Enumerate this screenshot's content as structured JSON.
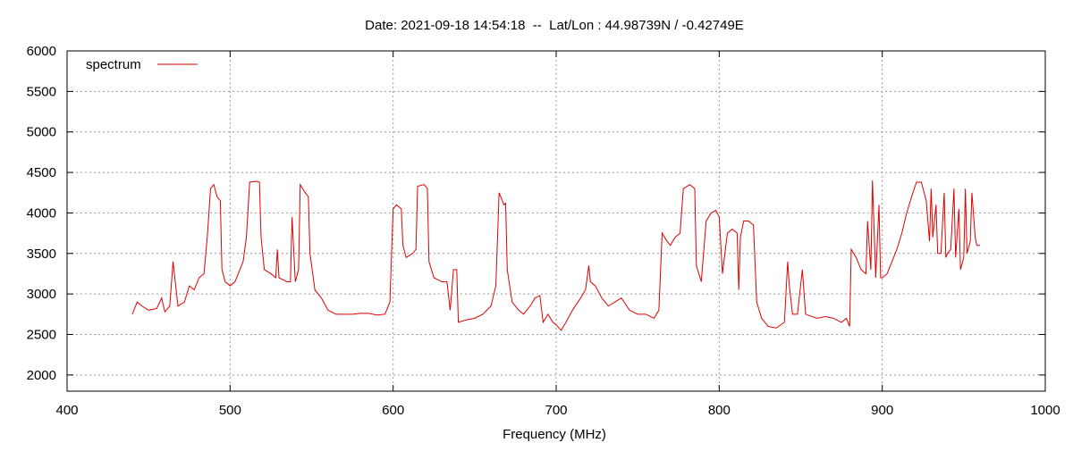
{
  "chart_data": {
    "type": "line",
    "title": "Date: 2021-09-18 14:54:18  --  Lat/Lon : 44.98739N / -0.42749E",
    "x_label": "Frequency (MHz)",
    "xlim": [
      400,
      1000
    ],
    "xticks": [
      400,
      500,
      600,
      700,
      800,
      900,
      1000
    ],
    "ylim": [
      1800,
      6000
    ],
    "yticks": [
      2000,
      2500,
      3000,
      3500,
      4000,
      4500,
      5000,
      5500,
      6000
    ],
    "grid": true,
    "legend": "top-left",
    "series": [
      {
        "name": "spectrum",
        "color": "#e00000",
        "x": [
          440,
          443,
          446,
          450,
          455,
          458,
          460,
          463,
          465,
          468,
          472,
          475,
          478,
          481,
          484,
          486,
          488,
          490,
          492,
          494,
          495,
          497,
          500,
          503,
          506,
          508,
          510,
          512,
          516,
          518,
          519,
          521,
          525,
          528,
          529,
          530,
          535,
          537,
          538,
          540,
          542,
          543,
          546,
          548,
          549,
          552,
          556,
          560,
          565,
          570,
          575,
          580,
          585,
          590,
          595,
          598,
          600,
          602,
          605,
          606,
          608,
          612,
          614,
          615,
          619,
          621,
          622,
          625,
          630,
          633,
          635,
          637,
          639,
          640,
          645,
          650,
          655,
          660,
          663,
          665,
          668,
          669,
          670,
          673,
          677,
          680,
          684,
          687,
          690,
          692,
          695,
          698,
          700,
          703,
          706,
          710,
          715,
          718,
          720,
          721,
          724,
          728,
          732,
          736,
          740,
          745,
          750,
          755,
          760,
          763,
          765,
          768,
          770,
          773,
          776,
          778,
          782,
          785,
          786,
          789,
          792,
          795,
          798,
          800,
          802,
          805,
          808,
          811,
          812,
          813,
          815,
          818,
          821,
          823,
          826,
          830,
          835,
          840,
          842,
          843,
          845,
          848,
          851,
          853,
          857,
          860,
          865,
          870,
          875,
          878,
          880,
          881,
          884,
          887,
          890,
          891,
          893,
          894,
          896,
          898,
          899,
          900,
          903,
          906,
          909,
          912,
          915,
          918,
          921,
          924,
          927,
          929,
          930,
          931,
          933,
          934,
          936,
          938,
          939,
          940,
          942,
          944,
          945,
          947,
          948,
          950,
          951,
          952,
          954,
          955,
          957,
          958,
          960
        ],
        "values": [
          2750,
          2900,
          2850,
          2800,
          2820,
          2950,
          2780,
          2850,
          3400,
          2850,
          2900,
          3100,
          3050,
          3200,
          3250,
          3700,
          4300,
          4350,
          4200,
          4150,
          3300,
          3150,
          3100,
          3150,
          3300,
          3400,
          3700,
          4380,
          4390,
          4380,
          3700,
          3300,
          3250,
          3200,
          3550,
          3200,
          3150,
          3150,
          3950,
          3150,
          3300,
          4350,
          4250,
          4200,
          3500,
          3050,
          2950,
          2800,
          2750,
          2750,
          2750,
          2760,
          2760,
          2740,
          2750,
          2900,
          4050,
          4100,
          4050,
          3600,
          3450,
          3500,
          3550,
          4330,
          4350,
          4300,
          3400,
          3200,
          3150,
          3150,
          2800,
          3300,
          3300,
          2650,
          2680,
          2700,
          2750,
          2850,
          3100,
          4250,
          4100,
          4120,
          3300,
          2900,
          2800,
          2750,
          2850,
          2950,
          2980,
          2650,
          2750,
          2650,
          2620,
          2550,
          2650,
          2800,
          2950,
          3050,
          3350,
          3150,
          3100,
          2950,
          2850,
          2900,
          2950,
          2800,
          2750,
          2750,
          2700,
          2800,
          3750,
          3650,
          3600,
          3700,
          3750,
          4300,
          4350,
          4300,
          3350,
          3150,
          3900,
          4000,
          4030,
          3950,
          3250,
          3750,
          3800,
          3750,
          3050,
          3700,
          3900,
          3900,
          3850,
          2900,
          2700,
          2600,
          2580,
          2650,
          3400,
          3100,
          2750,
          2750,
          3300,
          2750,
          2720,
          2700,
          2720,
          2700,
          2650,
          2700,
          2600,
          3550,
          3450,
          3300,
          3250,
          3900,
          3300,
          4400,
          3200,
          4100,
          3200,
          3200,
          3250,
          3400,
          3550,
          3750,
          4000,
          4200,
          4380,
          4380,
          4150,
          3650,
          4300,
          3700,
          4100,
          3500,
          3500,
          4250,
          3450,
          3500,
          3550,
          4300,
          3450,
          4050,
          3300,
          3450,
          4300,
          3500,
          3650,
          4250,
          3700,
          3600,
          3600
        ]
      }
    ]
  }
}
